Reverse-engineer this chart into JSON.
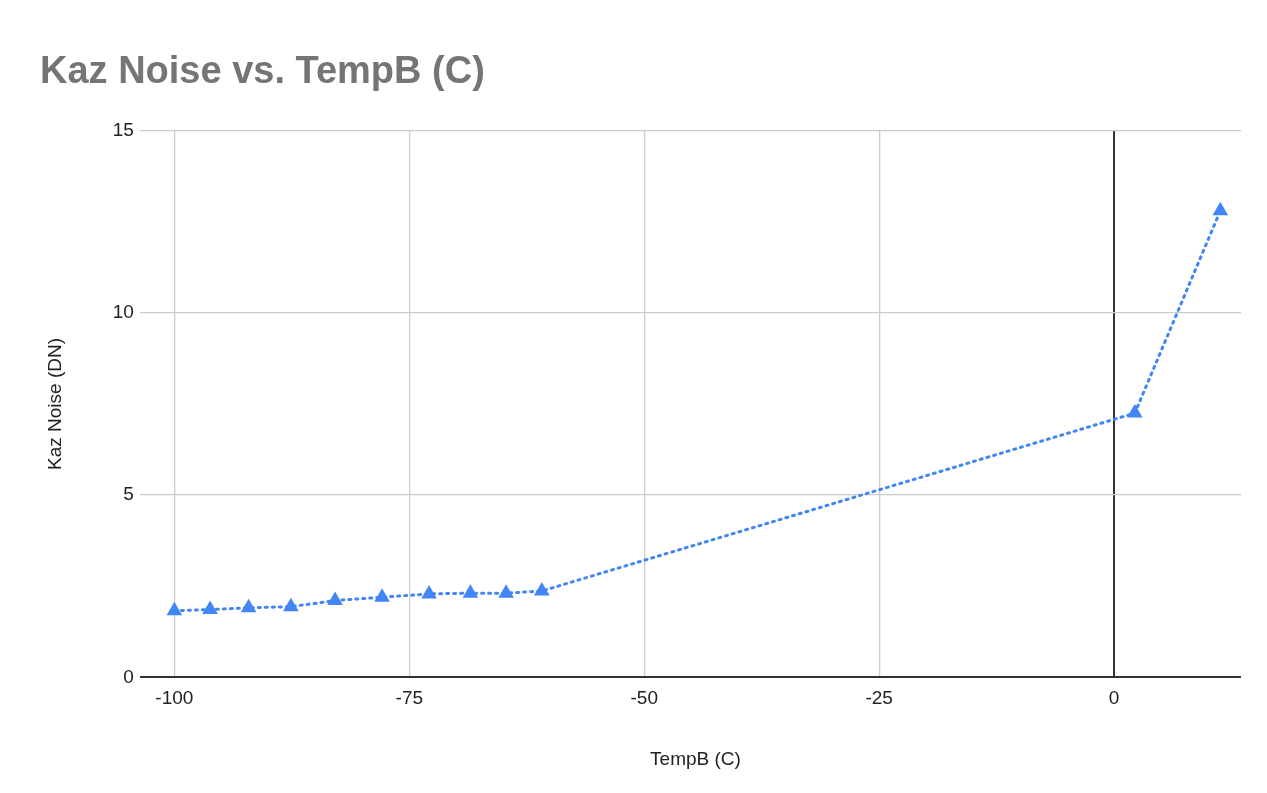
{
  "chart_data": {
    "type": "line",
    "title": "Kaz Noise vs. TempB (C)",
    "xlabel": "TempB (C)",
    "ylabel": "Kaz Noise (DN)",
    "x": [
      -100,
      -96.2,
      -92.1,
      -87.6,
      -82.9,
      -77.9,
      -72.9,
      -68.5,
      -64.7,
      -60.9,
      2.2,
      11.3
    ],
    "series": [
      {
        "color": "#4285f4",
        "values": [
          1.83,
          1.86,
          1.91,
          1.94,
          2.11,
          2.2,
          2.29,
          2.31,
          2.31,
          2.37,
          7.25,
          12.8
        ]
      }
    ],
    "xlim": [
      -102.6,
      13.5
    ],
    "xticks": [
      -100,
      -75,
      -50,
      -25,
      0
    ],
    "ylim": [
      0,
      15
    ],
    "yticks": [
      0,
      5,
      10,
      15
    ],
    "grid": true,
    "legend": false,
    "marker": "triangle",
    "line_style": "dotted"
  }
}
